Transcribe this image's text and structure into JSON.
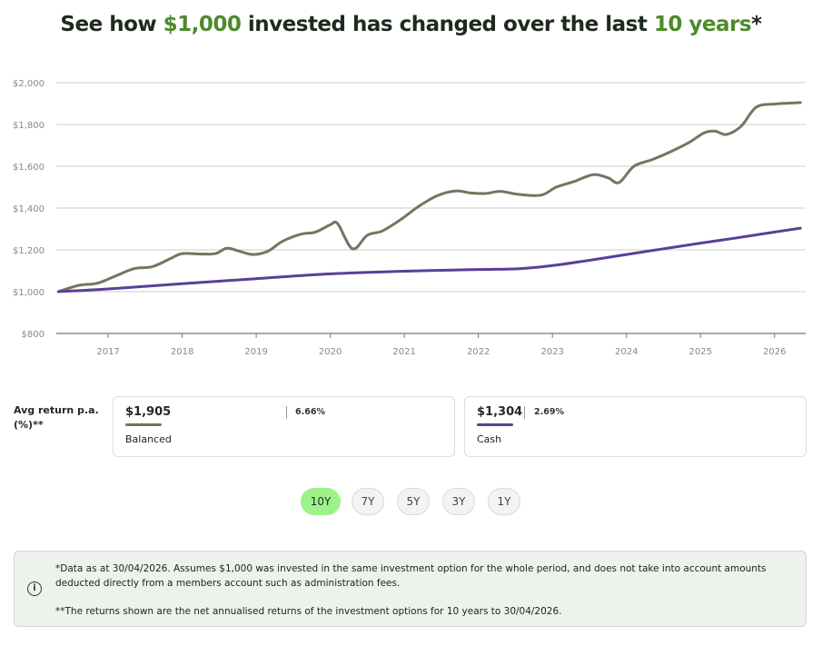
{
  "headline": {
    "part1": "See how ",
    "amount": "$1,000",
    "part2": " invested has changed over the last ",
    "period": "10 years",
    "suffix": "*"
  },
  "colors": {
    "balanced": "#7a7260",
    "cash": "#5b3f96",
    "accent_green": "#4d8a2b",
    "active_button": "#9ef28a",
    "grid": "#cccccc"
  },
  "chart_data": {
    "type": "line",
    "ylim": [
      800,
      2000
    ],
    "yticks": [
      800,
      1000,
      1200,
      1400,
      1600,
      1800,
      2000
    ],
    "ytick_labels": [
      "$800",
      "$1,000",
      "$1,200",
      "$1,400",
      "$1,600",
      "$1,800",
      "$2,000"
    ],
    "xlim": [
      2016.3,
      2026.42
    ],
    "xticks": [
      2017,
      2018,
      2019,
      2020,
      2021,
      2022,
      2023,
      2024,
      2025,
      2026
    ],
    "xtick_labels": [
      "2017",
      "2018",
      "2019",
      "2020",
      "2021",
      "2022",
      "2023",
      "2024",
      "2025",
      "2026"
    ],
    "grid": true,
    "series": [
      {
        "name": "Balanced",
        "color": "#7a7260",
        "x": [
          2016.33,
          2016.6,
          2016.85,
          2017.1,
          2017.35,
          2017.6,
          2017.85,
          2018.0,
          2018.25,
          2018.45,
          2018.6,
          2018.75,
          2018.95,
          2019.15,
          2019.35,
          2019.6,
          2019.8,
          2020.0,
          2020.1,
          2020.3,
          2020.5,
          2020.7,
          2020.95,
          2021.2,
          2021.45,
          2021.7,
          2021.9,
          2022.1,
          2022.3,
          2022.55,
          2022.85,
          2023.05,
          2023.3,
          2023.55,
          2023.75,
          2023.9,
          2024.1,
          2024.35,
          2024.6,
          2024.85,
          2025.05,
          2025.2,
          2025.35,
          2025.55,
          2025.75,
          2026.0,
          2026.2,
          2026.35
        ],
        "values": [
          1000,
          1030,
          1040,
          1075,
          1110,
          1120,
          1160,
          1182,
          1180,
          1182,
          1208,
          1196,
          1178,
          1192,
          1240,
          1275,
          1285,
          1320,
          1325,
          1205,
          1270,
          1290,
          1345,
          1410,
          1460,
          1482,
          1472,
          1470,
          1480,
          1465,
          1462,
          1500,
          1528,
          1560,
          1545,
          1522,
          1600,
          1632,
          1670,
          1715,
          1760,
          1768,
          1752,
          1792,
          1882,
          1898,
          1902,
          1905
        ]
      },
      {
        "name": "Cash",
        "color": "#5b3f96",
        "x": [
          2016.33,
          2017.0,
          2018.0,
          2019.0,
          2020.0,
          2021.0,
          2022.0,
          2022.55,
          2023.0,
          2023.5,
          2024.0,
          2024.5,
          2025.0,
          2025.5,
          2026.0,
          2026.35
        ],
        "values": [
          1000,
          1013,
          1038,
          1062,
          1085,
          1098,
          1106,
          1110,
          1125,
          1150,
          1178,
          1205,
          1232,
          1258,
          1285,
          1304
        ]
      }
    ]
  },
  "avg_return_label": "Avg return p.a. (%)**",
  "cards": [
    {
      "value": "$1,905",
      "pct": "6.66%",
      "name": "Balanced",
      "color": "#7a7260"
    },
    {
      "value": "$1,304",
      "pct": "2.69%",
      "name": "Cash",
      "color": "#5b3f96"
    }
  ],
  "periods": [
    "10Y",
    "7Y",
    "5Y",
    "3Y",
    "1Y"
  ],
  "active_period": "10Y",
  "notes": {
    "info_icon": "info-icon",
    "note1": "*Data as at 30/04/2026. Assumes $1,000 was invested in the same investment option for the whole period, and does not take into account amounts deducted directly from a members account such as administration fees.",
    "note2": "**The returns shown are the net annualised returns of the investment options for 10 years to 30/04/2026."
  }
}
